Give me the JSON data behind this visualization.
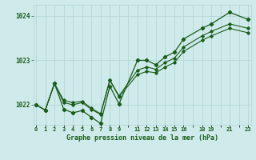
{
  "title": "Graphe pression niveau de la mer (hPa)",
  "bg_color": "#ceeaea",
  "grid_color": "#b0d4d4",
  "line_color": "#1a5c1a",
  "x_hours": [
    0,
    1,
    2,
    3,
    4,
    5,
    6,
    7,
    8,
    9,
    11,
    12,
    13,
    14,
    15,
    16,
    18,
    19,
    21,
    23
  ],
  "y_main": [
    1022.0,
    1021.88,
    1022.48,
    1021.9,
    1021.82,
    1021.87,
    1021.72,
    1021.58,
    1022.42,
    1022.02,
    1023.0,
    1023.0,
    1022.9,
    1023.08,
    1023.18,
    1023.48,
    1023.72,
    1023.82,
    1024.08,
    1023.92
  ],
  "y_smooth": [
    1022.0,
    1021.88,
    1022.48,
    1022.05,
    1022.0,
    1022.05,
    1021.9,
    1021.78,
    1022.55,
    1022.18,
    1022.68,
    1022.75,
    1022.72,
    1022.85,
    1022.95,
    1023.2,
    1023.45,
    1023.55,
    1023.72,
    1023.62
  ],
  "y_upper": [
    1022.0,
    1021.88,
    1022.48,
    1022.1,
    1022.05,
    1022.08,
    1021.92,
    1021.8,
    1022.56,
    1022.2,
    1022.78,
    1022.85,
    1022.8,
    1022.95,
    1023.05,
    1023.3,
    1023.55,
    1023.65,
    1023.82,
    1023.72
  ],
  "ylim": [
    1021.55,
    1024.25
  ],
  "yticks": [
    1022,
    1023,
    1024
  ],
  "xlim": [
    -0.3,
    23.3
  ],
  "x_tick_labels": [
    "0",
    "1",
    "2",
    "3",
    "4",
    "5",
    "6",
    "7",
    "8",
    "9",
    "",
    "11",
    "12",
    "13",
    "14",
    "15",
    "16",
    "",
    "18",
    "19",
    "",
    "21",
    "",
    "23"
  ],
  "x_tick_positions": [
    0,
    1,
    2,
    3,
    4,
    5,
    6,
    7,
    8,
    9,
    10,
    11,
    12,
    13,
    14,
    15,
    16,
    17,
    18,
    19,
    20,
    21,
    22,
    23
  ]
}
